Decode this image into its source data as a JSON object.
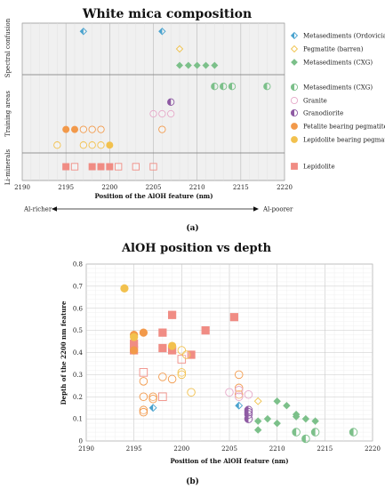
{
  "panel_labels": [
    "(a)",
    "(b)"
  ],
  "chart_data": [
    {
      "type": "scatter",
      "title": "White mica composition",
      "xlabel": "Position of the AlOH feature (nm)",
      "xlim": [
        2190,
        2220
      ],
      "xticks": [
        2190,
        2195,
        2200,
        2205,
        2210,
        2215,
        2220
      ],
      "categories": [
        "Spectral confusion",
        "Training areas",
        "Li-minerals"
      ],
      "arrow_left": "Al-richer",
      "arrow_right": "Al-poorer",
      "grid": true,
      "legend_position": "right",
      "series": [
        {
          "name": "Metasediments (Ordovician)",
          "category": "Spectral confusion",
          "color": "#4aa3cf",
          "marker": "diamond-half",
          "x": [
            2197,
            2206
          ],
          "y": [
            0.84,
            0.84
          ]
        },
        {
          "name": "Pegmatite (barren)",
          "category": "Spectral confusion",
          "color": "#f0c24a",
          "marker": "diamond-open",
          "x": [
            2208
          ],
          "y": [
            0.5
          ]
        },
        {
          "name": "Metasediments (CXG)",
          "category": "Spectral confusion",
          "color": "#7cc08a",
          "marker": "diamond",
          "x": [
            2208,
            2209,
            2210,
            2211,
            2212
          ],
          "y": [
            0.18,
            0.18,
            0.18,
            0.18,
            0.18
          ]
        },
        {
          "name": "Metasediments (CXG)",
          "category": "Training areas",
          "color": "#7cc08a",
          "marker": "circle-half",
          "x": [
            2212,
            2213,
            2214,
            2218
          ],
          "y": [
            0.85,
            0.85,
            0.85,
            0.85
          ]
        },
        {
          "name": "Granite",
          "category": "Training areas",
          "color": "#e6a9c9",
          "marker": "circle-open",
          "x": [
            2205,
            2206,
            2207
          ],
          "y": [
            0.5,
            0.5,
            0.5
          ]
        },
        {
          "name": "Granodiorite",
          "category": "Training areas",
          "color": "#8e5aa3",
          "marker": "circle-half",
          "x": [
            2207
          ],
          "y": [
            0.65
          ]
        },
        {
          "name": "Petalite bearing pegmatite",
          "category": "Training areas",
          "color": "#f2994a",
          "marker": "circle-mixed",
          "x": [
            2195,
            2196,
            2197,
            2198,
            2199,
            2206
          ],
          "y": [
            0.3,
            0.3,
            0.3,
            0.3,
            0.3,
            0.3
          ]
        },
        {
          "name": "Lepidolite bearing pegmatite",
          "category": "Training areas",
          "color": "#f2c14e",
          "marker": "circle-mixed",
          "x": [
            2194,
            2197,
            2198,
            2199,
            2200
          ],
          "y": [
            0.1,
            0.1,
            0.1,
            0.1,
            0.1
          ]
        },
        {
          "name": "Lepidolite",
          "category": "Li-minerals",
          "color": "#f08c84",
          "marker": "square-mixed",
          "x": [
            2195,
            2196,
            2198,
            2199,
            2200,
            2201,
            2203,
            2205
          ],
          "y": [
            0.5,
            0.5,
            0.5,
            0.5,
            0.5,
            0.5,
            0.5,
            0.5
          ]
        }
      ]
    },
    {
      "type": "scatter",
      "title": "AlOH position vs depth",
      "xlabel": "Position of the AlOH feature (nm)",
      "ylabel": "Depth of the 2200 nm feature",
      "xlim": [
        2190,
        2220
      ],
      "ylim": [
        0,
        0.8
      ],
      "xticks": [
        2190,
        2195,
        2200,
        2205,
        2210,
        2215,
        2220
      ],
      "yticks": [
        0,
        0.1,
        0.2,
        0.3,
        0.4,
        0.5,
        0.6,
        0.7,
        0.8
      ],
      "grid": true,
      "series": [
        {
          "group": "lepidolite-filled",
          "color": "#f08c84",
          "marker": "square",
          "filled": true,
          "points": [
            [
              2195,
              0.44
            ],
            [
              2195,
              0.41
            ],
            [
              2198,
              0.49
            ],
            [
              2199,
              0.57
            ],
            [
              2201,
              0.39
            ],
            [
              2202.5,
              0.5
            ],
            [
              2205.5,
              0.56
            ],
            [
              2198,
              0.42
            ],
            [
              2199,
              0.41
            ]
          ]
        },
        {
          "group": "lepidolite-open",
          "color": "#f08c84",
          "marker": "square",
          "filled": false,
          "points": [
            [
              2196,
              0.31
            ],
            [
              2198,
              0.2
            ],
            [
              2200,
              0.37
            ]
          ]
        },
        {
          "group": "petalite-pegmatite",
          "color": "#f2994a",
          "marker": "circle",
          "filled": "mixed",
          "points": [
            [
              2195,
              0.48
            ],
            [
              2196,
              0.49
            ],
            [
              2195,
              0.41
            ],
            [
              2196,
              0.27
            ],
            [
              2196,
              0.2
            ],
            [
              2196,
              0.14
            ],
            [
              2196,
              0.13
            ],
            [
              2197,
              0.2
            ],
            [
              2197,
              0.19
            ],
            [
              2198,
              0.29
            ],
            [
              2199,
              0.28
            ],
            [
              2206,
              0.3
            ],
            [
              2206,
              0.24
            ],
            [
              2206,
              0.21
            ]
          ]
        },
        {
          "group": "lepidolite-pegmatite",
          "color": "#f2c14e",
          "marker": "circle",
          "filled": "mixed",
          "points": [
            [
              2194,
              0.69
            ],
            [
              2195,
              0.47
            ],
            [
              2199,
              0.43
            ],
            [
              2200,
              0.41
            ],
            [
              2200,
              0.31
            ],
            [
              2200,
              0.3
            ],
            [
              2201,
              0.22
            ],
            [
              2200.5,
              0.39
            ]
          ]
        },
        {
          "group": "granite",
          "color": "#e6a9c9",
          "marker": "circle",
          "filled": false,
          "points": [
            [
              2205,
              0.22
            ],
            [
              2206,
              0.23
            ],
            [
              2207,
              0.21
            ],
            [
              2206,
              0.2
            ]
          ]
        },
        {
          "group": "granodiorite",
          "color": "#8e5aa3",
          "marker": "circle",
          "filled": "half",
          "points": [
            [
              2207,
              0.14
            ],
            [
              2207,
              0.12
            ],
            [
              2207,
              0.1
            ],
            [
              2207,
              0.13
            ]
          ]
        },
        {
          "group": "metasediments-ordovician",
          "color": "#4aa3cf",
          "marker": "diamond",
          "filled": "half",
          "points": [
            [
              2197,
              0.15
            ],
            [
              2206,
              0.16
            ]
          ]
        },
        {
          "group": "metasediments-cxg-training",
          "color": "#7cc08a",
          "marker": "circle",
          "filled": "half",
          "points": [
            [
              2212,
              0.04
            ],
            [
              2213,
              0.01
            ],
            [
              2214,
              0.04
            ],
            [
              2218,
              0.04
            ]
          ]
        },
        {
          "group": "metasediments-cxg-confusion",
          "color": "#7cc08a",
          "marker": "diamond",
          "filled": true,
          "points": [
            [
              2208,
              0.09
            ],
            [
              2209,
              0.1
            ],
            [
              2210,
              0.18
            ],
            [
              2211,
              0.16
            ],
            [
              2212,
              0.12
            ],
            [
              2212,
              0.11
            ],
            [
              2213,
              0.1
            ],
            [
              2214,
              0.09
            ],
            [
              2208,
              0.05
            ],
            [
              2210,
              0.08
            ]
          ]
        },
        {
          "group": "pegmatite-barren",
          "color": "#f0c24a",
          "marker": "diamond",
          "filled": false,
          "points": [
            [
              2208,
              0.18
            ]
          ]
        }
      ]
    }
  ]
}
